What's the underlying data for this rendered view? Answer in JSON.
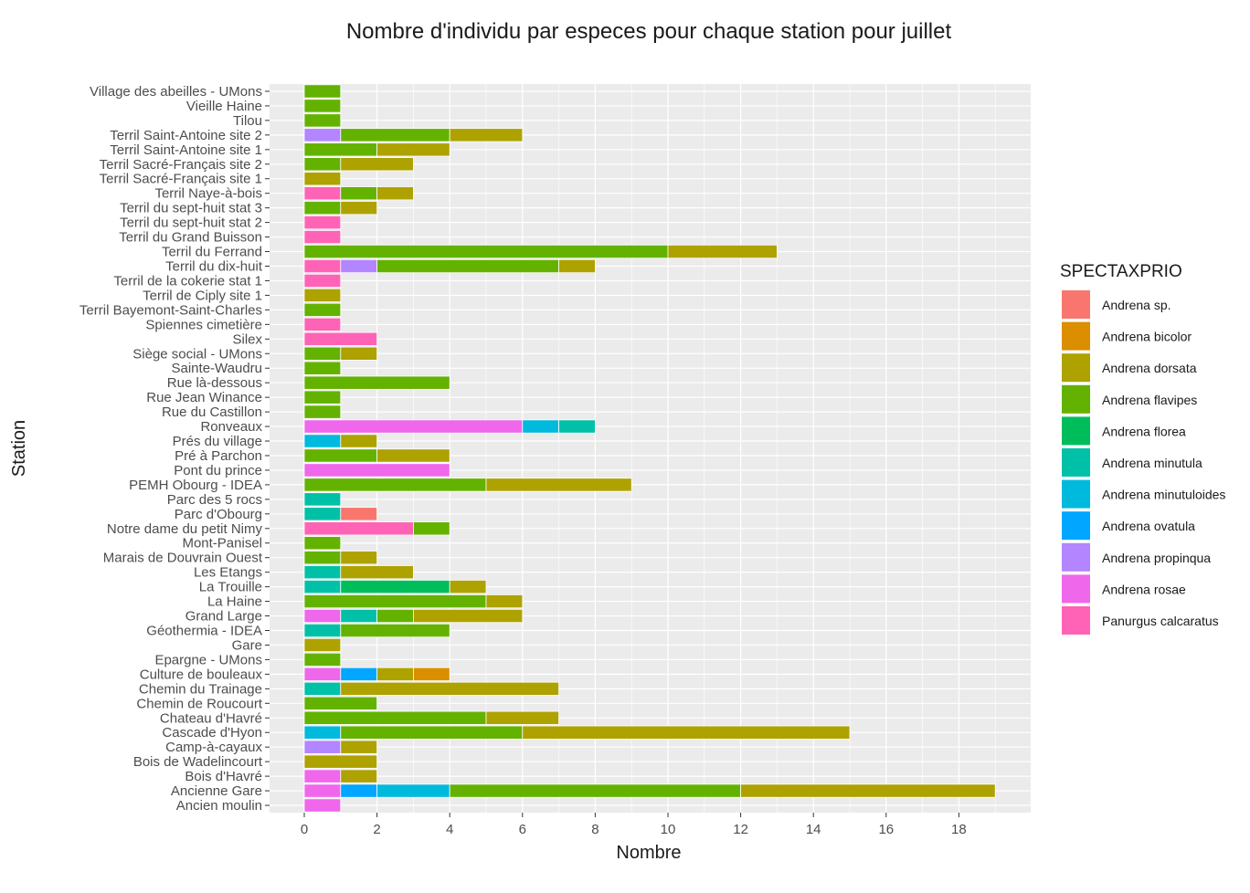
{
  "chart_data": {
    "type": "bar",
    "orientation": "horizontal",
    "stacked": true,
    "title": "Nombre d'individu par especes pour chaque station pour juillet",
    "xlabel": "Nombre",
    "ylabel": "Station",
    "xlim": [
      0,
      19
    ],
    "xticks": [
      0,
      2,
      4,
      6,
      8,
      10,
      12,
      14,
      16,
      18
    ],
    "grid": true,
    "legend_position": "right",
    "legend_title": "SPECTAXPRIO",
    "species": [
      {
        "name": "Andrena  sp.",
        "color": "#F8766D"
      },
      {
        "name": "Andrena bicolor",
        "color": "#DB8E00"
      },
      {
        "name": "Andrena dorsata",
        "color": "#AEA200"
      },
      {
        "name": "Andrena flavipes",
        "color": "#64B200"
      },
      {
        "name": "Andrena florea",
        "color": "#00BD5C"
      },
      {
        "name": "Andrena minutula",
        "color": "#00C1A7"
      },
      {
        "name": "Andrena minutuloides",
        "color": "#00BADE"
      },
      {
        "name": "Andrena ovatula",
        "color": "#00A6FF"
      },
      {
        "name": "Andrena propinqua",
        "color": "#B385FF"
      },
      {
        "name": "Andrena rosae",
        "color": "#EF67EB"
      },
      {
        "name": "Panurgus calcaratus",
        "color": "#FF63B6"
      }
    ],
    "stations": [
      {
        "name": "Village des abeilles - UMons",
        "counts": {
          "Andrena flavipes": 1
        }
      },
      {
        "name": "Vieille Haine",
        "counts": {
          "Andrena flavipes": 1
        }
      },
      {
        "name": "Tilou",
        "counts": {
          "Andrena flavipes": 1
        }
      },
      {
        "name": "Terril Saint-Antoine site 2",
        "counts": {
          "Andrena propinqua": 1,
          "Andrena flavipes": 3,
          "Andrena dorsata": 2
        }
      },
      {
        "name": "Terril Saint-Antoine site 1",
        "counts": {
          "Andrena flavipes": 2,
          "Andrena dorsata": 2
        }
      },
      {
        "name": "Terril Sacré-Français site 2",
        "counts": {
          "Andrena flavipes": 1,
          "Andrena dorsata": 2
        }
      },
      {
        "name": "Terril Sacré-Français site 1",
        "counts": {
          "Andrena dorsata": 1
        }
      },
      {
        "name": "Terril Naye-à-bois",
        "counts": {
          "Panurgus calcaratus": 1,
          "Andrena flavipes": 1,
          "Andrena dorsata": 1
        }
      },
      {
        "name": "Terril du sept-huit stat 3",
        "counts": {
          "Andrena flavipes": 1,
          "Andrena dorsata": 1
        }
      },
      {
        "name": "Terril du sept-huit stat 2",
        "counts": {
          "Panurgus calcaratus": 1
        }
      },
      {
        "name": "Terril du Grand Buisson",
        "counts": {
          "Panurgus calcaratus": 1
        }
      },
      {
        "name": "Terril du Ferrand",
        "counts": {
          "Andrena flavipes": 10,
          "Andrena dorsata": 3
        }
      },
      {
        "name": "Terril du dix-huit",
        "counts": {
          "Panurgus calcaratus": 1,
          "Andrena propinqua": 1,
          "Andrena flavipes": 5,
          "Andrena dorsata": 1
        }
      },
      {
        "name": "Terril de la cokerie stat 1",
        "counts": {
          "Panurgus calcaratus": 1
        }
      },
      {
        "name": "Terril de Ciply site 1",
        "counts": {
          "Andrena dorsata": 1
        }
      },
      {
        "name": "Terril Bayemont-Saint-Charles",
        "counts": {
          "Andrena flavipes": 1
        }
      },
      {
        "name": "Spiennes cimetière",
        "counts": {
          "Panurgus calcaratus": 1
        }
      },
      {
        "name": "Silex",
        "counts": {
          "Panurgus calcaratus": 2
        }
      },
      {
        "name": "Siège social - UMons",
        "counts": {
          "Andrena flavipes": 1,
          "Andrena dorsata": 1
        }
      },
      {
        "name": "Sainte-Waudru",
        "counts": {
          "Andrena flavipes": 1
        }
      },
      {
        "name": "Rue là-dessous",
        "counts": {
          "Andrena flavipes": 4
        }
      },
      {
        "name": "Rue Jean Winance",
        "counts": {
          "Andrena flavipes": 1
        }
      },
      {
        "name": "Rue du Castillon",
        "counts": {
          "Andrena flavipes": 1
        }
      },
      {
        "name": "Ronveaux",
        "counts": {
          "Andrena rosae": 6,
          "Andrena minutuloides": 1,
          "Andrena minutula": 1
        }
      },
      {
        "name": "Prés du village",
        "counts": {
          "Andrena minutuloides": 1,
          "Andrena dorsata": 1
        }
      },
      {
        "name": "Pré à Parchon",
        "counts": {
          "Andrena flavipes": 2,
          "Andrena dorsata": 2
        }
      },
      {
        "name": "Pont du prince",
        "counts": {
          "Andrena rosae": 4
        }
      },
      {
        "name": "PEMH Obourg - IDEA",
        "counts": {
          "Andrena flavipes": 5,
          "Andrena dorsata": 4
        }
      },
      {
        "name": "Parc des 5 rocs",
        "counts": {
          "Andrena minutula": 1
        }
      },
      {
        "name": "Parc d'Obourg",
        "counts": {
          "Andrena minutula": 1,
          "Andrena  sp.": 1
        }
      },
      {
        "name": "Notre dame du petit Nimy",
        "counts": {
          "Panurgus calcaratus": 3,
          "Andrena flavipes": 1
        }
      },
      {
        "name": "Mont-Panisel",
        "counts": {
          "Andrena flavipes": 1
        }
      },
      {
        "name": "Marais de Douvrain Ouest",
        "counts": {
          "Andrena flavipes": 1,
          "Andrena dorsata": 1
        }
      },
      {
        "name": "Les Etangs",
        "counts": {
          "Andrena minutula": 1,
          "Andrena dorsata": 2
        }
      },
      {
        "name": "La Trouille",
        "counts": {
          "Andrena minutula": 1,
          "Andrena florea": 3,
          "Andrena dorsata": 1
        }
      },
      {
        "name": "La Haine",
        "counts": {
          "Andrena flavipes": 5,
          "Andrena dorsata": 1
        }
      },
      {
        "name": "Grand Large",
        "counts": {
          "Andrena rosae": 1,
          "Andrena minutula": 1,
          "Andrena flavipes": 1,
          "Andrena dorsata": 3
        }
      },
      {
        "name": "Géothermia - IDEA",
        "counts": {
          "Andrena minutula": 1,
          "Andrena flavipes": 3
        }
      },
      {
        "name": "Gare",
        "counts": {
          "Andrena dorsata": 1
        }
      },
      {
        "name": "Epargne - UMons",
        "counts": {
          "Andrena flavipes": 1
        }
      },
      {
        "name": "Culture  de bouleaux",
        "counts": {
          "Andrena rosae": 1,
          "Andrena ovatula": 1,
          "Andrena dorsata": 1,
          "Andrena bicolor": 1
        }
      },
      {
        "name": "Chemin du Trainage",
        "counts": {
          "Andrena minutula": 1,
          "Andrena dorsata": 6
        }
      },
      {
        "name": "Chemin de Roucourt",
        "counts": {
          "Andrena flavipes": 2
        }
      },
      {
        "name": "Chateau d'Havré",
        "counts": {
          "Andrena flavipes": 5,
          "Andrena dorsata": 2
        }
      },
      {
        "name": "Cascade d'Hyon",
        "counts": {
          "Andrena minutuloides": 1,
          "Andrena flavipes": 5,
          "Andrena dorsata": 9
        }
      },
      {
        "name": "Camp-à-cayaux",
        "counts": {
          "Andrena propinqua": 1,
          "Andrena dorsata": 1
        }
      },
      {
        "name": "Bois de Wadelincourt",
        "counts": {
          "Andrena dorsata": 2
        }
      },
      {
        "name": "Bois d'Havré",
        "counts": {
          "Andrena rosae": 1,
          "Andrena dorsata": 1
        }
      },
      {
        "name": "Ancienne Gare",
        "counts": {
          "Andrena rosae": 1,
          "Andrena ovatula": 1,
          "Andrena minutuloides": 2,
          "Andrena flavipes": 8,
          "Andrena dorsata": 7
        }
      },
      {
        "name": "Ancien moulin",
        "counts": {
          "Andrena rosae": 1
        }
      }
    ]
  }
}
